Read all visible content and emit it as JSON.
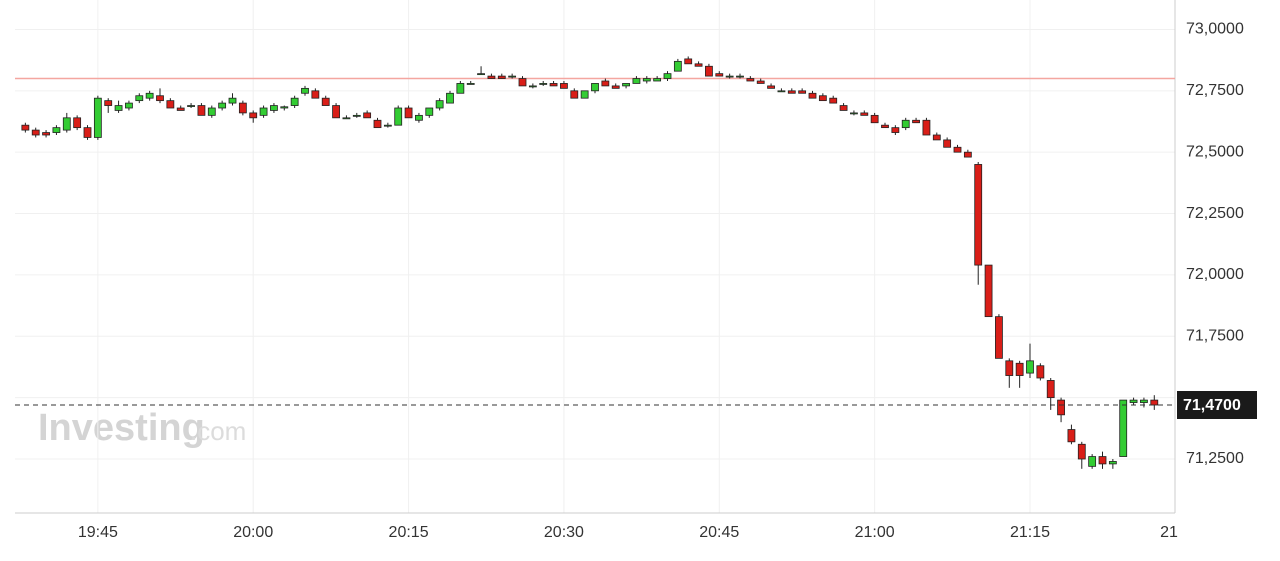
{
  "chart_data": {
    "type": "candlestick",
    "x": [
      "19:38",
      "19:39",
      "19:40",
      "19:41",
      "19:42",
      "19:43",
      "19:44",
      "19:45",
      "19:46",
      "19:47",
      "19:48",
      "19:49",
      "19:50",
      "19:51",
      "19:52",
      "19:53",
      "19:54",
      "19:55",
      "19:56",
      "19:57",
      "19:58",
      "19:59",
      "20:00",
      "20:01",
      "20:02",
      "20:03",
      "20:04",
      "20:05",
      "20:06",
      "20:07",
      "20:08",
      "20:09",
      "20:10",
      "20:11",
      "20:12",
      "20:13",
      "20:14",
      "20:15",
      "20:16",
      "20:17",
      "20:18",
      "20:19",
      "20:20",
      "20:21",
      "20:22",
      "20:23",
      "20:24",
      "20:25",
      "20:26",
      "20:27",
      "20:28",
      "20:29",
      "20:30",
      "20:31",
      "20:32",
      "20:33",
      "20:34",
      "20:35",
      "20:36",
      "20:37",
      "20:38",
      "20:39",
      "20:40",
      "20:41",
      "20:42",
      "20:43",
      "20:44",
      "20:45",
      "20:46",
      "20:47",
      "20:48",
      "20:49",
      "20:50",
      "20:51",
      "20:52",
      "20:53",
      "20:54",
      "20:55",
      "20:56",
      "20:57",
      "20:58",
      "20:59",
      "21:00",
      "21:01",
      "21:02",
      "21:03",
      "21:04",
      "21:05",
      "21:06",
      "21:07",
      "21:08",
      "21:09",
      "21:10",
      "21:11",
      "21:12",
      "21:13",
      "21:14",
      "21:15",
      "21:16",
      "21:17",
      "21:18",
      "21:19",
      "21:20",
      "21:21",
      "21:22",
      "21:23",
      "21:24",
      "21:25",
      "21:26",
      "21:27"
    ],
    "ohlc": [
      [
        72.61,
        72.62,
        72.58,
        72.59
      ],
      [
        72.59,
        72.6,
        72.56,
        72.57
      ],
      [
        72.58,
        72.59,
        72.56,
        72.57
      ],
      [
        72.58,
        72.61,
        72.57,
        72.6
      ],
      [
        72.59,
        72.66,
        72.58,
        72.64
      ],
      [
        72.64,
        72.65,
        72.59,
        72.6
      ],
      [
        72.6,
        72.61,
        72.55,
        72.56
      ],
      [
        72.56,
        72.73,
        72.55,
        72.72
      ],
      [
        72.71,
        72.72,
        72.66,
        72.69
      ],
      [
        72.67,
        72.71,
        72.66,
        72.69
      ],
      [
        72.68,
        72.71,
        72.67,
        72.7
      ],
      [
        72.71,
        72.74,
        72.7,
        72.73
      ],
      [
        72.72,
        72.75,
        72.71,
        72.74
      ],
      [
        72.73,
        72.76,
        72.7,
        72.71
      ],
      [
        72.71,
        72.72,
        72.68,
        72.68
      ],
      [
        72.68,
        72.69,
        72.67,
        72.67
      ],
      [
        72.69,
        72.7,
        72.68,
        72.69
      ],
      [
        72.69,
        72.7,
        72.65,
        72.65
      ],
      [
        72.65,
        72.69,
        72.64,
        72.68
      ],
      [
        72.68,
        72.71,
        72.67,
        72.7
      ],
      [
        72.7,
        72.74,
        72.69,
        72.72
      ],
      [
        72.7,
        72.71,
        72.65,
        72.66
      ],
      [
        72.66,
        72.67,
        72.62,
        72.64
      ],
      [
        72.65,
        72.69,
        72.64,
        72.68
      ],
      [
        72.67,
        72.7,
        72.66,
        72.69
      ],
      [
        72.68,
        72.69,
        72.67,
        72.685
      ],
      [
        72.69,
        72.73,
        72.68,
        72.72
      ],
      [
        72.74,
        72.77,
        72.73,
        72.76
      ],
      [
        72.75,
        72.76,
        72.72,
        72.72
      ],
      [
        72.72,
        72.73,
        72.69,
        72.69
      ],
      [
        72.69,
        72.7,
        72.64,
        72.64
      ],
      [
        72.64,
        72.65,
        72.64,
        72.64
      ],
      [
        72.65,
        72.66,
        72.64,
        72.65
      ],
      [
        72.66,
        72.67,
        72.64,
        72.64
      ],
      [
        72.63,
        72.64,
        72.6,
        72.6
      ],
      [
        72.61,
        72.62,
        72.6,
        72.61
      ],
      [
        72.61,
        72.69,
        72.61,
        72.68
      ],
      [
        72.68,
        72.69,
        72.64,
        72.64
      ],
      [
        72.63,
        72.66,
        72.62,
        72.65
      ],
      [
        72.65,
        72.68,
        72.64,
        72.68
      ],
      [
        72.68,
        72.72,
        72.67,
        72.71
      ],
      [
        72.7,
        72.75,
        72.7,
        72.74
      ],
      [
        72.74,
        72.79,
        72.74,
        72.78
      ],
      [
        72.78,
        72.79,
        72.78,
        72.78
      ],
      [
        72.82,
        72.85,
        72.82,
        72.82
      ],
      [
        72.81,
        72.82,
        72.8,
        72.8
      ],
      [
        72.81,
        72.82,
        72.8,
        72.8
      ],
      [
        72.81,
        72.82,
        72.8,
        72.81
      ],
      [
        72.8,
        72.81,
        72.77,
        72.77
      ],
      [
        72.77,
        72.78,
        72.76,
        72.77
      ],
      [
        72.78,
        72.79,
        72.77,
        72.78
      ],
      [
        72.78,
        72.79,
        72.77,
        72.77
      ],
      [
        72.78,
        72.79,
        72.76,
        72.76
      ],
      [
        72.75,
        72.76,
        72.72,
        72.72
      ],
      [
        72.72,
        72.75,
        72.72,
        72.75
      ],
      [
        72.75,
        72.78,
        72.74,
        72.78
      ],
      [
        72.79,
        72.8,
        72.77,
        72.77
      ],
      [
        72.77,
        72.78,
        72.76,
        72.76
      ],
      [
        72.77,
        72.78,
        72.76,
        72.78
      ],
      [
        72.78,
        72.81,
        72.78,
        72.8
      ],
      [
        72.79,
        72.81,
        72.78,
        72.8
      ],
      [
        72.79,
        72.81,
        72.79,
        72.8
      ],
      [
        72.8,
        72.83,
        72.79,
        72.82
      ],
      [
        72.83,
        72.88,
        72.83,
        72.87
      ],
      [
        72.88,
        72.89,
        72.86,
        72.86
      ],
      [
        72.86,
        72.87,
        72.85,
        72.85
      ],
      [
        72.85,
        72.86,
        72.81,
        72.81
      ],
      [
        72.82,
        72.83,
        72.81,
        72.81
      ],
      [
        72.81,
        72.82,
        72.8,
        72.81
      ],
      [
        72.81,
        72.82,
        72.8,
        72.81
      ],
      [
        72.8,
        72.81,
        72.79,
        72.79
      ],
      [
        72.79,
        72.8,
        72.78,
        72.78
      ],
      [
        72.77,
        72.78,
        72.76,
        72.76
      ],
      [
        72.75,
        72.76,
        72.75,
        72.75
      ],
      [
        72.75,
        72.76,
        72.74,
        72.74
      ],
      [
        72.75,
        72.76,
        72.74,
        72.74
      ],
      [
        72.74,
        72.75,
        72.72,
        72.72
      ],
      [
        72.73,
        72.74,
        72.71,
        72.71
      ],
      [
        72.72,
        72.73,
        72.7,
        72.7
      ],
      [
        72.69,
        72.7,
        72.67,
        72.67
      ],
      [
        72.66,
        72.67,
        72.65,
        72.66
      ],
      [
        72.66,
        72.67,
        72.65,
        72.65
      ],
      [
        72.65,
        72.66,
        72.62,
        72.62
      ],
      [
        72.61,
        72.62,
        72.6,
        72.6
      ],
      [
        72.6,
        72.61,
        72.57,
        72.58
      ],
      [
        72.6,
        72.64,
        72.59,
        72.63
      ],
      [
        72.63,
        72.64,
        72.62,
        72.62
      ],
      [
        72.63,
        72.64,
        72.57,
        72.57
      ],
      [
        72.57,
        72.58,
        72.55,
        72.55
      ],
      [
        72.55,
        72.56,
        72.52,
        72.52
      ],
      [
        72.52,
        72.53,
        72.5,
        72.5
      ],
      [
        72.5,
        72.51,
        72.48,
        72.48
      ],
      [
        72.45,
        72.46,
        71.96,
        72.04
      ],
      [
        72.04,
        72.04,
        71.83,
        71.83
      ],
      [
        71.83,
        71.84,
        71.66,
        71.66
      ],
      [
        71.65,
        71.66,
        71.54,
        71.59
      ],
      [
        71.64,
        71.65,
        71.54,
        71.59
      ],
      [
        71.6,
        71.72,
        71.58,
        71.65
      ],
      [
        71.63,
        71.64,
        71.57,
        71.58
      ],
      [
        71.57,
        71.58,
        71.45,
        71.5
      ],
      [
        71.49,
        71.5,
        71.4,
        71.43
      ],
      [
        71.37,
        71.39,
        71.31,
        71.32
      ],
      [
        71.31,
        71.32,
        71.21,
        71.25
      ],
      [
        71.22,
        71.27,
        71.21,
        71.26
      ],
      [
        71.26,
        71.28,
        71.21,
        71.23
      ],
      [
        71.23,
        71.25,
        71.21,
        71.24
      ],
      [
        71.26,
        71.49,
        71.26,
        71.49
      ],
      [
        71.48,
        71.5,
        71.47,
        71.49
      ],
      [
        71.48,
        71.5,
        71.46,
        71.49
      ],
      [
        71.49,
        71.51,
        71.45,
        71.47
      ]
    ],
    "up_color": "#33cc33",
    "down_color": "#d91e18",
    "xlim": [
      "19:37",
      "21:29"
    ],
    "xticks": [
      "19:45",
      "20:00",
      "20:15",
      "20:30",
      "20:45",
      "21:00",
      "21:15",
      {
        "value": "21:30",
        "label": "21"
      }
    ],
    "ylim": [
      71.03,
      73.12
    ],
    "yticks": [
      {
        "value": 71.25,
        "label": "71,2500"
      },
      {
        "value": 71.5,
        "label": "71,5000"
      },
      {
        "value": 71.75,
        "label": "71,7500"
      },
      {
        "value": 72,
        "label": "72,0000"
      },
      {
        "value": 72.25,
        "label": "72,2500"
      },
      {
        "value": 72.5,
        "label": "72,5000"
      },
      {
        "value": 72.75,
        "label": "72,7500"
      },
      {
        "value": 73,
        "label": "73,0000"
      }
    ],
    "grid": true,
    "reference_line": {
      "value": 72.8,
      "color": "#f4a6a0"
    },
    "current_price": {
      "value": 71.47,
      "label": "71,4700"
    },
    "watermark": [
      "Investing",
      ".com"
    ]
  }
}
